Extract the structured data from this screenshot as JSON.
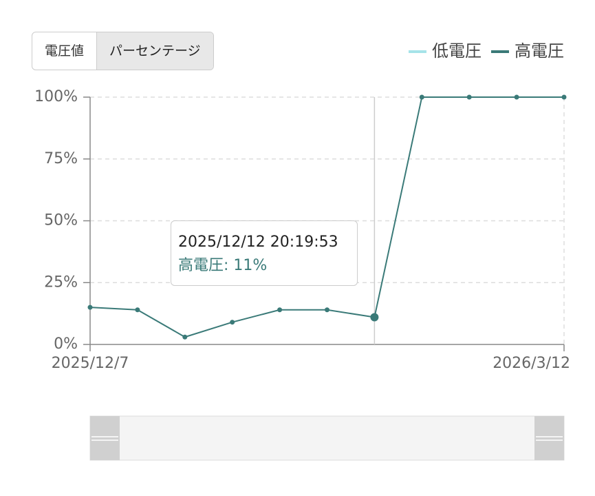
{
  "toggle": {
    "options": [
      "電圧値",
      "パーセンテージ"
    ]
  },
  "chart_data": {
    "type": "line",
    "categories": [
      "2025/12/7",
      null,
      null,
      null,
      null,
      null,
      null,
      null,
      null,
      null,
      "2026/3/12"
    ],
    "series": [
      {
        "name": "低電圧",
        "color": "#a6e3e9",
        "values": [
          null,
          null,
          null,
          null,
          null,
          null,
          null,
          null,
          null,
          null,
          null
        ]
      },
      {
        "name": "高電圧",
        "color": "#3a7a78",
        "values": [
          15,
          14,
          3,
          9,
          14,
          14,
          11,
          100,
          100,
          100,
          100
        ]
      }
    ],
    "ylim": [
      0,
      100
    ],
    "yticks": [
      {
        "value": 0,
        "label": "0%"
      },
      {
        "value": 25,
        "label": "25%"
      },
      {
        "value": 50,
        "label": "50%"
      },
      {
        "value": 75,
        "label": "75%"
      },
      {
        "value": 100,
        "label": "100%"
      }
    ],
    "grid": true,
    "legend": "top-right",
    "tooltip": {
      "index": 6,
      "title": "2025/12/12 20:19:53",
      "text": "高電圧: 11%"
    }
  }
}
